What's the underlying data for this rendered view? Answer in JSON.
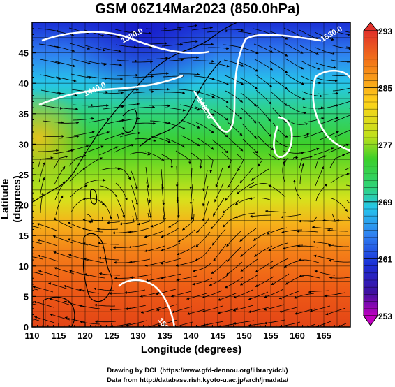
{
  "title": "GSM 06Z14Mar2023 (850.0hPa)",
  "xlabel": "Longitude (degrees)",
  "ylabel": "Latitude (degrees)",
  "credits": [
    "Drawing by DCL (https://www.gfd-dennou.org/library/dcl/)",
    "Data from http://database.rish.kyoto-u.ac.jp/arch/jmadata/"
  ],
  "map": {
    "lon_range": [
      110,
      170
    ],
    "lat_range": [
      0,
      50
    ],
    "lon_ticks": [
      110,
      115,
      120,
      125,
      130,
      135,
      140,
      145,
      150,
      155,
      160,
      165
    ],
    "lat_ticks": [
      0,
      5,
      10,
      15,
      20,
      25,
      30,
      35,
      40,
      45
    ],
    "field": "temperature (K)",
    "overlay": "wind streamlines",
    "grid": true
  },
  "colorbar": {
    "min": 253,
    "max": 293,
    "labels": [
      293,
      285,
      277,
      269,
      261,
      253
    ],
    "colors": [
      "#c000c0",
      "#4000c0",
      "#0040ff",
      "#00a0ff",
      "#00e0e0",
      "#00d060",
      "#40d000",
      "#c0e000",
      "#ffe000",
      "#ffa000",
      "#ff6000",
      "#e02000"
    ]
  },
  "contours": [
    {
      "label": "1380.0"
    },
    {
      "label": "1440.0"
    },
    {
      "label": "1480.0"
    },
    {
      "label": "1530.0"
    },
    {
      "label": "1500.0"
    }
  ]
}
